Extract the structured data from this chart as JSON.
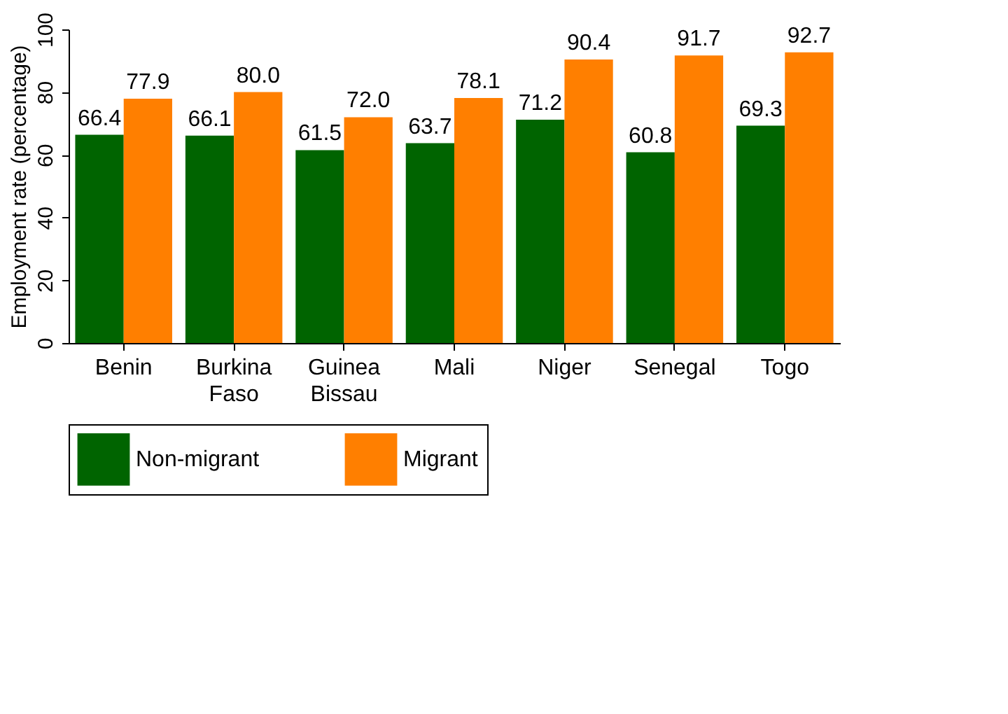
{
  "chart_data": {
    "type": "bar",
    "ylabel": "Employment rate (percentage)",
    "categories": [
      "Benin",
      "Burkina Faso",
      "Guinea Bissau",
      "Mali",
      "Niger",
      "Senegal",
      "Togo"
    ],
    "series": [
      {
        "name": "Non-migrant",
        "color": "#006400",
        "values": [
          66.4,
          66.1,
          61.5,
          63.7,
          71.2,
          60.8,
          69.3
        ]
      },
      {
        "name": "Migrant",
        "color": "#ff7f00",
        "values": [
          77.9,
          80.0,
          72.0,
          78.1,
          90.4,
          91.7,
          92.7
        ]
      }
    ],
    "value_labels": [
      [
        "66.4",
        "66.1",
        "61.5",
        "63.7",
        "71.2",
        "60.8",
        "69.3"
      ],
      [
        "77.9",
        "80.0",
        "72.0",
        "78.1",
        "90.4",
        "91.7",
        "92.7"
      ]
    ],
    "ylim": [
      0,
      100
    ],
    "yticks": [
      0,
      20,
      40,
      60,
      80,
      100
    ],
    "grid": false,
    "legend": "bottom"
  }
}
